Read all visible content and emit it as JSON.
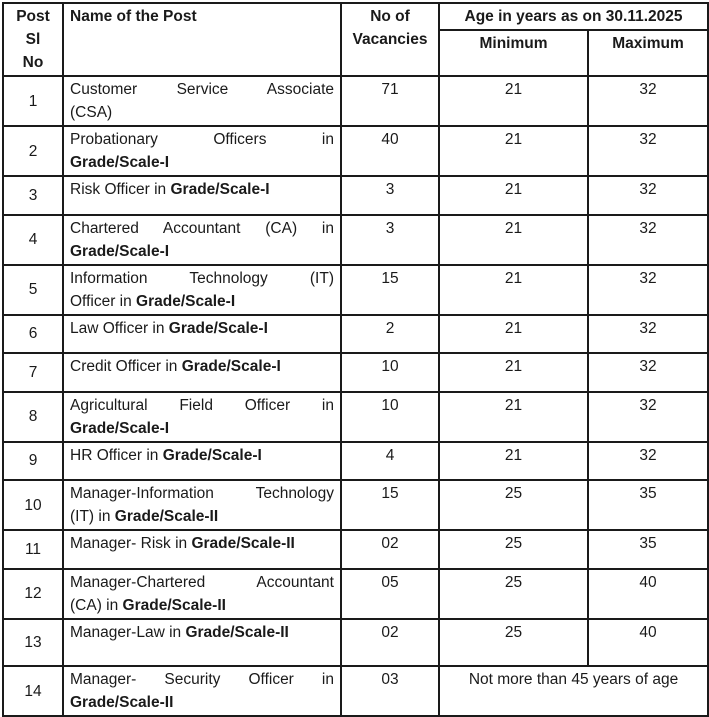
{
  "colors": {
    "text": "#1a1a1a",
    "border": "#1a1a1a",
    "background": "#ffffff"
  },
  "table": {
    "header": {
      "sl_lines": [
        "Post",
        "Sl",
        "No"
      ],
      "name": "Name of the Post",
      "vacancies_lines": [
        "No of",
        "Vacancies"
      ],
      "age": "Age in years as on 30.11.2025",
      "min": "Minimum",
      "max": "Maximum"
    },
    "rows": [
      {
        "sl": "1",
        "lines": [
          [
            {
              "t": "Customer Service Associate"
            }
          ],
          [
            {
              "t": "(CSA)"
            }
          ]
        ],
        "vac": "71",
        "min": "21",
        "max": "32"
      },
      {
        "sl": "2",
        "lines": [
          [
            {
              "t": "Probationary Officers in"
            }
          ],
          [
            {
              "t": "Grade/Scale-I",
              "b": true
            }
          ]
        ],
        "vac": "40",
        "min": "21",
        "max": "32"
      },
      {
        "sl": "3",
        "lines": [
          [
            {
              "t": "Risk Officer in "
            },
            {
              "t": "Grade/Scale-I",
              "b": true
            }
          ]
        ],
        "vac": "3",
        "min": "21",
        "max": "32",
        "short": true
      },
      {
        "sl": "4",
        "lines": [
          [
            {
              "t": "Chartered Accountant (CA) in"
            }
          ],
          [
            {
              "t": "Grade/Scale-I",
              "b": true
            }
          ]
        ],
        "vac": "3",
        "min": "21",
        "max": "32"
      },
      {
        "sl": "5",
        "lines": [
          [
            {
              "t": "Information Technology (IT)"
            }
          ],
          [
            {
              "t": "Officer in "
            },
            {
              "t": "Grade/Scale-I",
              "b": true
            }
          ]
        ],
        "vac": "15",
        "min": "21",
        "max": "32"
      },
      {
        "sl": "6",
        "lines": [
          [
            {
              "t": "Law Officer in "
            },
            {
              "t": "Grade/Scale-I",
              "b": true
            }
          ]
        ],
        "vac": "2",
        "min": "21",
        "max": "32",
        "short": true
      },
      {
        "sl": "7",
        "lines": [
          [
            {
              "t": "Credit Officer in "
            },
            {
              "t": "Grade/Scale-I",
              "b": true
            }
          ]
        ],
        "vac": "10",
        "min": "21",
        "max": "32",
        "short": true
      },
      {
        "sl": "8",
        "lines": [
          [
            {
              "t": "Agricultural Field Officer in"
            }
          ],
          [
            {
              "t": "Grade/Scale-I",
              "b": true
            }
          ]
        ],
        "vac": "10",
        "min": "21",
        "max": "32"
      },
      {
        "sl": "9",
        "lines": [
          [
            {
              "t": "HR Officer in "
            },
            {
              "t": "Grade/Scale-I",
              "b": true
            }
          ]
        ],
        "vac": "4",
        "min": "21",
        "max": "32",
        "short": true
      },
      {
        "sl": "10",
        "lines": [
          [
            {
              "t": "Manager-Information Technology"
            }
          ],
          [
            {
              "t": "(IT) in "
            },
            {
              "t": "Grade/Scale-II",
              "b": true
            }
          ]
        ],
        "vac": "15",
        "min": "25",
        "max": "35"
      },
      {
        "sl": "11",
        "lines": [
          [
            {
              "t": "Manager- Risk in "
            },
            {
              "t": "Grade/Scale-II",
              "b": true
            }
          ]
        ],
        "vac": "02",
        "min": "25",
        "max": "35",
        "short": true
      },
      {
        "sl": "12",
        "lines": [
          [
            {
              "t": "Manager-Chartered Accountant"
            }
          ],
          [
            {
              "t": "(CA) in "
            },
            {
              "t": "Grade/Scale-II",
              "b": true
            }
          ]
        ],
        "vac": "05",
        "min": "25",
        "max": "40"
      },
      {
        "sl": "13",
        "lines": [
          [
            {
              "t": "Manager-Law in "
            },
            {
              "t": "Grade/Scale-II",
              "b": true
            }
          ]
        ],
        "vac": "02",
        "min": "25",
        "max": "40"
      },
      {
        "sl": "14",
        "lines": [
          [
            {
              "t": "Manager- Security Officer in"
            }
          ],
          [
            {
              "t": "Grade/Scale-II",
              "b": true
            }
          ]
        ],
        "vac": "03",
        "age_merged": "Not more than 45 years of age"
      }
    ]
  }
}
